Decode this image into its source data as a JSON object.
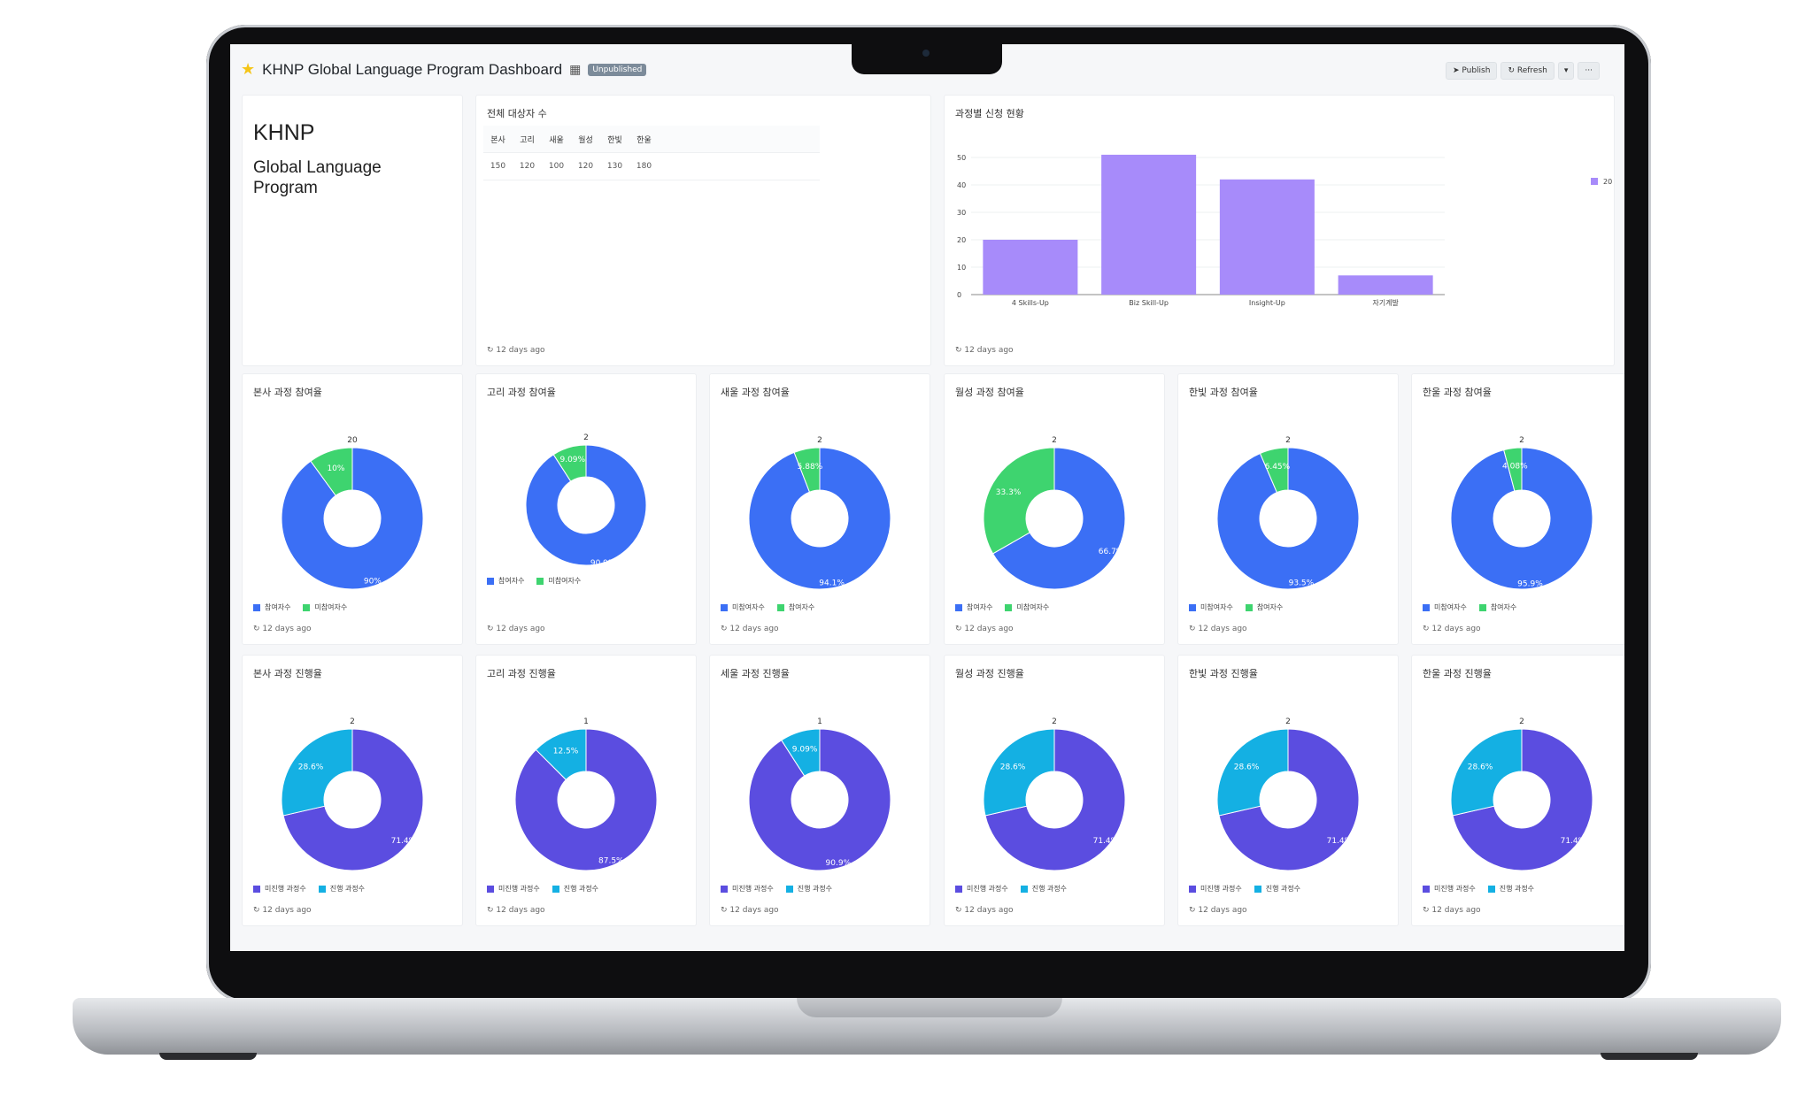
{
  "window": {
    "title": "KHNP Global Language Program Dashboard",
    "status_badge": "Unpublished",
    "actions": {
      "publish": "Publish",
      "refresh": "Refresh",
      "more": "···"
    }
  },
  "intro": {
    "logo": "KHNP",
    "subtitle": "Global Language Program"
  },
  "targets": {
    "title": "전체 대상자 수",
    "headers": [
      "본사",
      "고리",
      "새울",
      "월성",
      "한빛",
      "한울"
    ],
    "values": [
      "150",
      "120",
      "100",
      "120",
      "130",
      "180"
    ],
    "updated": "12 days ago"
  },
  "enrollment": {
    "title": "과정별 신청 현황",
    "updated": "12 days ago",
    "legend": "20",
    "chart_data": {
      "type": "bar",
      "categories": [
        "4 Skills-Up",
        "Biz Skill-Up",
        "Insight-Up",
        "자기계발"
      ],
      "values": [
        20,
        51,
        42,
        7
      ],
      "ylim": [
        0,
        50
      ],
      "yticks": [
        "0",
        "10",
        "20",
        "30",
        "40",
        "50"
      ],
      "color": "#a78bfa"
    }
  },
  "participation": [
    {
      "title": "본사 과정 참여율",
      "top": "20",
      "legend": [
        "참여자수",
        "미참여자수"
      ],
      "slices": [
        {
          "label": "90%",
          "value": 90,
          "color": "#3b6ff5"
        },
        {
          "label": "10%",
          "value": 10,
          "color": "#3ed46f"
        }
      ],
      "updated": "12 days ago"
    },
    {
      "title": "고리 과정 참여율",
      "top": "2",
      "legend": [
        "참여자수",
        "미참여자수"
      ],
      "slices": [
        {
          "label": "90.9%",
          "value": 90.9,
          "color": "#3b6ff5"
        },
        {
          "label": "9.09%",
          "value": 9.09,
          "color": "#3ed46f"
        }
      ],
      "updated": "12 days ago"
    },
    {
      "title": "새울 과정 참여율",
      "top": "2",
      "legend": [
        "미참여자수",
        "참여자수"
      ],
      "slices": [
        {
          "label": "94.1%",
          "value": 94.1,
          "color": "#3b6ff5"
        },
        {
          "label": "5.88%",
          "value": 5.88,
          "color": "#3ed46f"
        }
      ],
      "updated": "12 days ago"
    },
    {
      "title": "월성 과정 참여율",
      "top": "2",
      "legend": [
        "참여자수",
        "미참여자수"
      ],
      "slices": [
        {
          "label": "66.7%",
          "value": 66.7,
          "color": "#3b6ff5"
        },
        {
          "label": "33.3%",
          "value": 33.3,
          "color": "#3ed46f"
        }
      ],
      "updated": "12 days ago"
    },
    {
      "title": "한빛 과정 참여율",
      "top": "2",
      "legend": [
        "미참여자수",
        "참여자수"
      ],
      "slices": [
        {
          "label": "93.5%",
          "value": 93.5,
          "color": "#3b6ff5"
        },
        {
          "label": "6.45%",
          "value": 6.45,
          "color": "#3ed46f"
        }
      ],
      "updated": "12 days ago"
    },
    {
      "title": "한울 과정 참여율",
      "top": "2",
      "legend": [
        "미참여자수",
        "참여자수"
      ],
      "slices": [
        {
          "label": "95.9%",
          "value": 95.9,
          "color": "#3b6ff5"
        },
        {
          "label": "4.08%",
          "value": 4.08,
          "color": "#3ed46f"
        }
      ],
      "updated": "12 days ago"
    }
  ],
  "progress": [
    {
      "title": "본사 과정 진행율",
      "top": "2",
      "legend": [
        "미진행 과정수",
        "진행 과정수"
      ],
      "slices": [
        {
          "label": "71.4%",
          "value": 71.4,
          "color": "#5b4de0"
        },
        {
          "label": "28.6%",
          "value": 28.6,
          "color": "#14b0e3"
        }
      ],
      "updated": "12 days ago"
    },
    {
      "title": "고리 과정 진행율",
      "top": "1",
      "legend": [
        "미진행 과정수",
        "진행 과정수"
      ],
      "slices": [
        {
          "label": "87.5%",
          "value": 87.5,
          "color": "#5b4de0"
        },
        {
          "label": "12.5%",
          "value": 12.5,
          "color": "#14b0e3"
        }
      ],
      "updated": "12 days ago"
    },
    {
      "title": "세울 과정 진행율",
      "top": "1",
      "legend": [
        "미진행 과정수",
        "진행 과정수"
      ],
      "slices": [
        {
          "label": "90.9%",
          "value": 90.9,
          "color": "#5b4de0"
        },
        {
          "label": "9.09%",
          "value": 9.09,
          "color": "#14b0e3"
        }
      ],
      "updated": "12 days ago"
    },
    {
      "title": "월성 과정 진행율",
      "top": "2",
      "legend": [
        "미진행 과정수",
        "진행 과정수"
      ],
      "slices": [
        {
          "label": "71.4%",
          "value": 71.4,
          "color": "#5b4de0"
        },
        {
          "label": "28.6%",
          "value": 28.6,
          "color": "#14b0e3"
        }
      ],
      "updated": "12 days ago"
    },
    {
      "title": "한빛 과정 진행율",
      "top": "2",
      "legend": [
        "미진행 과정수",
        "진행 과정수"
      ],
      "slices": [
        {
          "label": "71.4%",
          "value": 71.4,
          "color": "#5b4de0"
        },
        {
          "label": "28.6%",
          "value": 28.6,
          "color": "#14b0e3"
        }
      ],
      "updated": "12 days ago"
    },
    {
      "title": "한울 과정 진행율",
      "top": "2",
      "legend": [
        "미진행 과정수",
        "진행 과정수"
      ],
      "slices": [
        {
          "label": "71.4%",
          "value": 71.4,
          "color": "#5b4de0"
        },
        {
          "label": "28.6%",
          "value": 28.6,
          "color": "#14b0e3"
        }
      ],
      "updated": "12 days ago"
    }
  ]
}
